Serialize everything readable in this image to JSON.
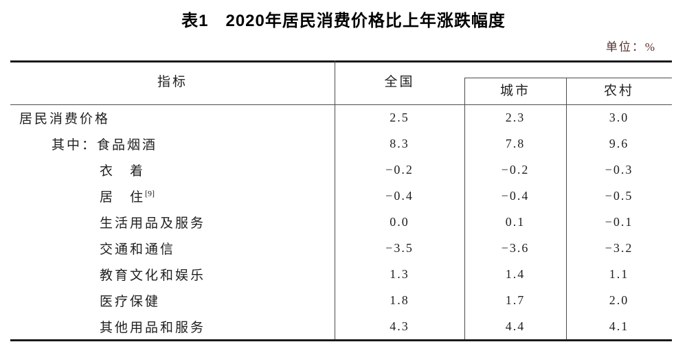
{
  "page_title": "表1　2020年居民消费价格比上年涨跌幅度",
  "unit_label": "单位：%",
  "colors": {
    "unit_text": "#5a2d2d",
    "heavy_rule": "#1a1a1a",
    "light_rule": "#4a4a4a",
    "text": "#1f1f1f",
    "background": "#ffffff"
  },
  "table": {
    "header": {
      "indicator": "指标",
      "national": "全国",
      "urban": "城市",
      "rural": "农村"
    },
    "rows": [
      {
        "label": "居民消费价格",
        "national": "2.5",
        "urban": "2.3",
        "rural": "3.0"
      },
      {
        "label": "其中：食品烟酒",
        "national": "8.3",
        "urban": "7.8",
        "rural": "9.6"
      },
      {
        "label": "衣　着",
        "national": "−0.2",
        "urban": "−0.2",
        "rural": "−0.3"
      },
      {
        "label": "居　住",
        "sup": "[9]",
        "national": "−0.4",
        "urban": "−0.4",
        "rural": "−0.5"
      },
      {
        "label": "生活用品及服务",
        "national": "0.0",
        "urban": "0.1",
        "rural": "−0.1"
      },
      {
        "label": "交通和通信",
        "national": "−3.5",
        "urban": "−3.6",
        "rural": "−3.2"
      },
      {
        "label": "教育文化和娱乐",
        "national": "1.3",
        "urban": "1.4",
        "rural": "1.1"
      },
      {
        "label": "医疗保健",
        "national": "1.8",
        "urban": "1.7",
        "rural": "2.0"
      },
      {
        "label": "其他用品和服务",
        "national": "4.3",
        "urban": "4.4",
        "rural": "4.1"
      }
    ]
  }
}
